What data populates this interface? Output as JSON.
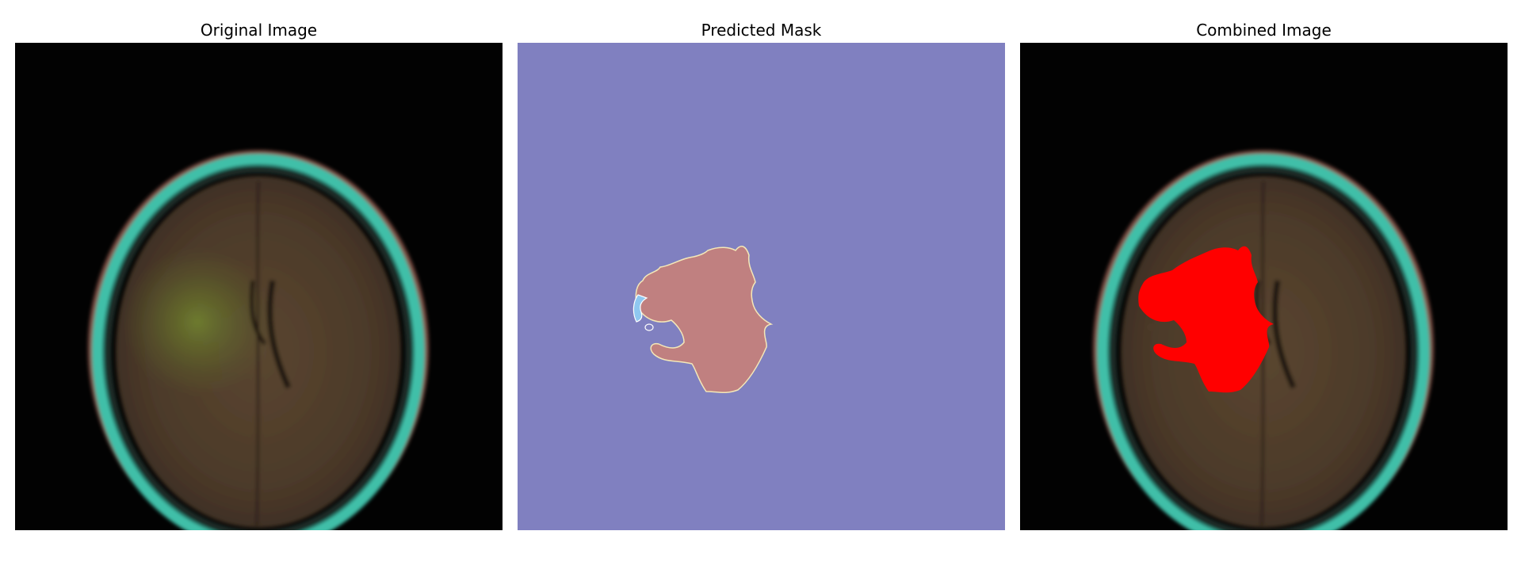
{
  "panels": [
    {
      "title": "Original Image"
    },
    {
      "title": "Predicted Mask"
    },
    {
      "title": "Combined Image"
    }
  ],
  "colors": {
    "mask_background": "#8080c0",
    "mask_region": "#c08080",
    "overlay": "#ff0000",
    "skull_ring": "#3fbfa8",
    "brain_tissue": "#4f3f2a"
  }
}
